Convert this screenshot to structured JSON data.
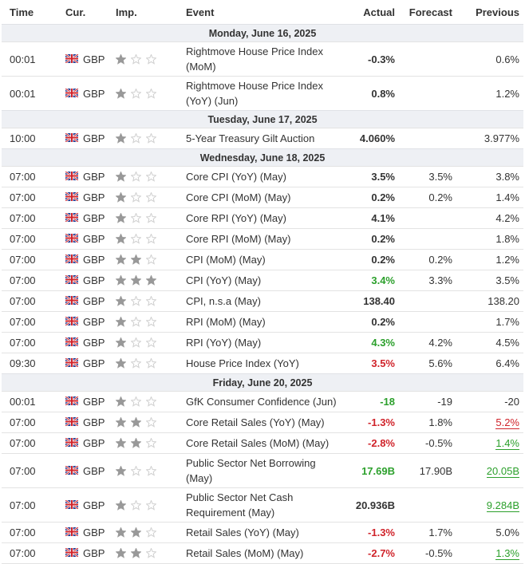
{
  "headers": {
    "time": "Time",
    "cur": "Cur.",
    "imp": "Imp.",
    "event": "Event",
    "actual": "Actual",
    "forecast": "Forecast",
    "previous": "Previous"
  },
  "colors": {
    "positive": "#2ca02c",
    "negative": "#d0242b",
    "star_filled": "#999999",
    "star_empty": "#d0d0d0",
    "day_bg": "#eef0f4"
  },
  "sections": [
    {
      "day": "Monday, June 16, 2025",
      "events": [
        {
          "time": "00:01",
          "cur": "GBP",
          "imp": 1,
          "event": "Rightmove House Price Index (MoM)",
          "actual": "-0.3%",
          "actual_color": "",
          "forecast": "",
          "previous": "0.6%",
          "previous_color": "",
          "tall": true
        },
        {
          "time": "00:01",
          "cur": "GBP",
          "imp": 1,
          "event": "Rightmove House Price Index (YoY) (Jun)",
          "actual": "0.8%",
          "actual_color": "",
          "forecast": "",
          "previous": "1.2%",
          "previous_color": "",
          "tall": true
        }
      ]
    },
    {
      "day": "Tuesday, June 17, 2025",
      "events": [
        {
          "time": "10:00",
          "cur": "GBP",
          "imp": 1,
          "event": "5-Year Treasury Gilt Auction",
          "actual": "4.060%",
          "actual_color": "",
          "forecast": "",
          "previous": "3.977%",
          "previous_color": ""
        }
      ]
    },
    {
      "day": "Wednesday, June 18, 2025",
      "events": [
        {
          "time": "07:00",
          "cur": "GBP",
          "imp": 1,
          "event": "Core CPI (YoY) (May)",
          "actual": "3.5%",
          "actual_color": "",
          "forecast": "3.5%",
          "previous": "3.8%",
          "previous_color": ""
        },
        {
          "time": "07:00",
          "cur": "GBP",
          "imp": 1,
          "event": "Core CPI (MoM) (May)",
          "actual": "0.2%",
          "actual_color": "",
          "forecast": "0.2%",
          "previous": "1.4%",
          "previous_color": ""
        },
        {
          "time": "07:00",
          "cur": "GBP",
          "imp": 1,
          "event": "Core RPI (YoY) (May)",
          "actual": "4.1%",
          "actual_color": "",
          "forecast": "",
          "previous": "4.2%",
          "previous_color": ""
        },
        {
          "time": "07:00",
          "cur": "GBP",
          "imp": 1,
          "event": "Core RPI (MoM) (May)",
          "actual": "0.2%",
          "actual_color": "",
          "forecast": "",
          "previous": "1.8%",
          "previous_color": ""
        },
        {
          "time": "07:00",
          "cur": "GBP",
          "imp": 2,
          "event": "CPI (MoM) (May)",
          "actual": "0.2%",
          "actual_color": "",
          "forecast": "0.2%",
          "previous": "1.2%",
          "previous_color": ""
        },
        {
          "time": "07:00",
          "cur": "GBP",
          "imp": 3,
          "event": "CPI (YoY) (May)",
          "actual": "3.4%",
          "actual_color": "g",
          "forecast": "3.3%",
          "previous": "3.5%",
          "previous_color": ""
        },
        {
          "time": "07:00",
          "cur": "GBP",
          "imp": 1,
          "event": "CPI, n.s.a (May)",
          "actual": "138.40",
          "actual_color": "",
          "forecast": "",
          "previous": "138.20",
          "previous_color": ""
        },
        {
          "time": "07:00",
          "cur": "GBP",
          "imp": 1,
          "event": "RPI (MoM) (May)",
          "actual": "0.2%",
          "actual_color": "",
          "forecast": "",
          "previous": "1.7%",
          "previous_color": ""
        },
        {
          "time": "07:00",
          "cur": "GBP",
          "imp": 1,
          "event": "RPI (YoY) (May)",
          "actual": "4.3%",
          "actual_color": "g",
          "forecast": "4.2%",
          "previous": "4.5%",
          "previous_color": ""
        },
        {
          "time": "09:30",
          "cur": "GBP",
          "imp": 1,
          "event": "House Price Index (YoY)",
          "actual": "3.5%",
          "actual_color": "r",
          "forecast": "5.6%",
          "previous": "6.4%",
          "previous_color": ""
        }
      ]
    },
    {
      "day": "Friday, June 20, 2025",
      "events": [
        {
          "time": "00:01",
          "cur": "GBP",
          "imp": 1,
          "event": "GfK Consumer Confidence (Jun)",
          "actual": "-18",
          "actual_color": "g",
          "forecast": "-19",
          "previous": "-20",
          "previous_color": ""
        },
        {
          "time": "07:00",
          "cur": "GBP",
          "imp": 2,
          "event": "Core Retail Sales (YoY) (May)",
          "actual": "-1.3%",
          "actual_color": "r",
          "forecast": "1.8%",
          "previous": "5.2%",
          "previous_color": "ul-r"
        },
        {
          "time": "07:00",
          "cur": "GBP",
          "imp": 2,
          "event": "Core Retail Sales (MoM) (May)",
          "actual": "-2.8%",
          "actual_color": "r",
          "forecast": "-0.5%",
          "previous": "1.4%",
          "previous_color": "ul-g"
        },
        {
          "time": "07:00",
          "cur": "GBP",
          "imp": 1,
          "event": "Public Sector Net Borrowing (May)",
          "actual": "17.69B",
          "actual_color": "g",
          "forecast": "17.90B",
          "previous": "20.05B",
          "previous_color": "ul-g",
          "tall": true
        },
        {
          "time": "07:00",
          "cur": "GBP",
          "imp": 1,
          "event": "Public Sector Net Cash Requirement (May)",
          "actual": "20.936B",
          "actual_color": "",
          "forecast": "",
          "previous": "9.284B",
          "previous_color": "ul-g",
          "tall": true
        },
        {
          "time": "07:00",
          "cur": "GBP",
          "imp": 2,
          "event": "Retail Sales (YoY) (May)",
          "actual": "-1.3%",
          "actual_color": "r",
          "forecast": "1.7%",
          "previous": "5.0%",
          "previous_color": ""
        },
        {
          "time": "07:00",
          "cur": "GBP",
          "imp": 2,
          "event": "Retail Sales (MoM) (May)",
          "actual": "-2.7%",
          "actual_color": "r",
          "forecast": "-0.5%",
          "previous": "1.3%",
          "previous_color": "ul-g"
        }
      ]
    }
  ]
}
